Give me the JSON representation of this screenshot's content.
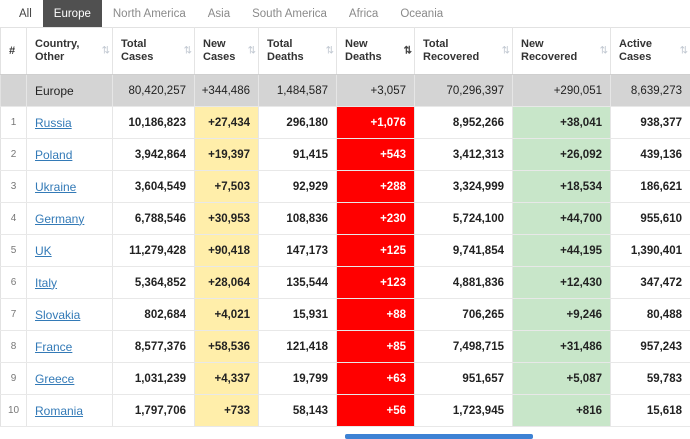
{
  "tabs": [
    {
      "label": "All",
      "active": false
    },
    {
      "label": "Europe",
      "active": true
    },
    {
      "label": "North America",
      "active": false
    },
    {
      "label": "Asia",
      "active": false
    },
    {
      "label": "South America",
      "active": false
    },
    {
      "label": "Africa",
      "active": false
    },
    {
      "label": "Oceania",
      "active": false
    }
  ],
  "icons": {
    "sort": "⇅"
  },
  "colors": {
    "active_tab_bg": "#505050",
    "new_cases_bg": "#ffeeaa",
    "new_deaths_bg": "#ff0000",
    "new_recovered_bg": "#c8e6c9",
    "summary_row_bg": "#d4d4d4",
    "link_color": "#337ab7",
    "scrollbar_thumb": "#3d82d4"
  },
  "table": {
    "columns": [
      {
        "key": "rank",
        "label": "#",
        "sortable": false
      },
      {
        "key": "country",
        "label": "Country, Other",
        "sortable": true
      },
      {
        "key": "total_cases",
        "label": "Total Cases",
        "sortable": true
      },
      {
        "key": "new_cases",
        "label": "New Cases",
        "sortable": true
      },
      {
        "key": "total_deaths",
        "label": "Total Deaths",
        "sortable": true
      },
      {
        "key": "new_deaths",
        "label": "New Deaths",
        "sortable": true,
        "sorted": "desc"
      },
      {
        "key": "total_recovered",
        "label": "Total Recovered",
        "sortable": true
      },
      {
        "key": "new_recovered",
        "label": "New Recovered",
        "sortable": true
      },
      {
        "key": "active_cases",
        "label": "Active Cases",
        "sortable": true
      }
    ],
    "summary_row": {
      "rank": "",
      "country": "Europe",
      "total_cases": "80,420,257",
      "new_cases": "+344,486",
      "total_deaths": "1,484,587",
      "new_deaths": "+3,057",
      "total_recovered": "70,296,397",
      "new_recovered": "+290,051",
      "active_cases": "8,639,273"
    },
    "rows": [
      {
        "rank": "1",
        "country": "Russia",
        "total_cases": "10,186,823",
        "new_cases": "+27,434",
        "total_deaths": "296,180",
        "new_deaths": "+1,076",
        "total_recovered": "8,952,266",
        "new_recovered": "+38,041",
        "active_cases": "938,377"
      },
      {
        "rank": "2",
        "country": "Poland",
        "total_cases": "3,942,864",
        "new_cases": "+19,397",
        "total_deaths": "91,415",
        "new_deaths": "+543",
        "total_recovered": "3,412,313",
        "new_recovered": "+26,092",
        "active_cases": "439,136"
      },
      {
        "rank": "3",
        "country": "Ukraine",
        "total_cases": "3,604,549",
        "new_cases": "+7,503",
        "total_deaths": "92,929",
        "new_deaths": "+288",
        "total_recovered": "3,324,999",
        "new_recovered": "+18,534",
        "active_cases": "186,621"
      },
      {
        "rank": "4",
        "country": "Germany",
        "total_cases": "6,788,546",
        "new_cases": "+30,953",
        "total_deaths": "108,836",
        "new_deaths": "+230",
        "total_recovered": "5,724,100",
        "new_recovered": "+44,700",
        "active_cases": "955,610"
      },
      {
        "rank": "5",
        "country": "UK",
        "total_cases": "11,279,428",
        "new_cases": "+90,418",
        "total_deaths": "147,173",
        "new_deaths": "+125",
        "total_recovered": "9,741,854",
        "new_recovered": "+44,195",
        "active_cases": "1,390,401"
      },
      {
        "rank": "6",
        "country": "Italy",
        "total_cases": "5,364,852",
        "new_cases": "+28,064",
        "total_deaths": "135,544",
        "new_deaths": "+123",
        "total_recovered": "4,881,836",
        "new_recovered": "+12,430",
        "active_cases": "347,472"
      },
      {
        "rank": "7",
        "country": "Slovakia",
        "total_cases": "802,684",
        "new_cases": "+4,021",
        "total_deaths": "15,931",
        "new_deaths": "+88",
        "total_recovered": "706,265",
        "new_recovered": "+9,246",
        "active_cases": "80,488"
      },
      {
        "rank": "8",
        "country": "France",
        "total_cases": "8,577,376",
        "new_cases": "+58,536",
        "total_deaths": "121,418",
        "new_deaths": "+85",
        "total_recovered": "7,498,715",
        "new_recovered": "+31,486",
        "active_cases": "957,243"
      },
      {
        "rank": "9",
        "country": "Greece",
        "total_cases": "1,031,239",
        "new_cases": "+4,337",
        "total_deaths": "19,799",
        "new_deaths": "+63",
        "total_recovered": "951,657",
        "new_recovered": "+5,087",
        "active_cases": "59,783"
      },
      {
        "rank": "10",
        "country": "Romania",
        "total_cases": "1,797,706",
        "new_cases": "+733",
        "total_deaths": "58,143",
        "new_deaths": "+56",
        "total_recovered": "1,723,945",
        "new_recovered": "+816",
        "active_cases": "15,618"
      }
    ]
  }
}
